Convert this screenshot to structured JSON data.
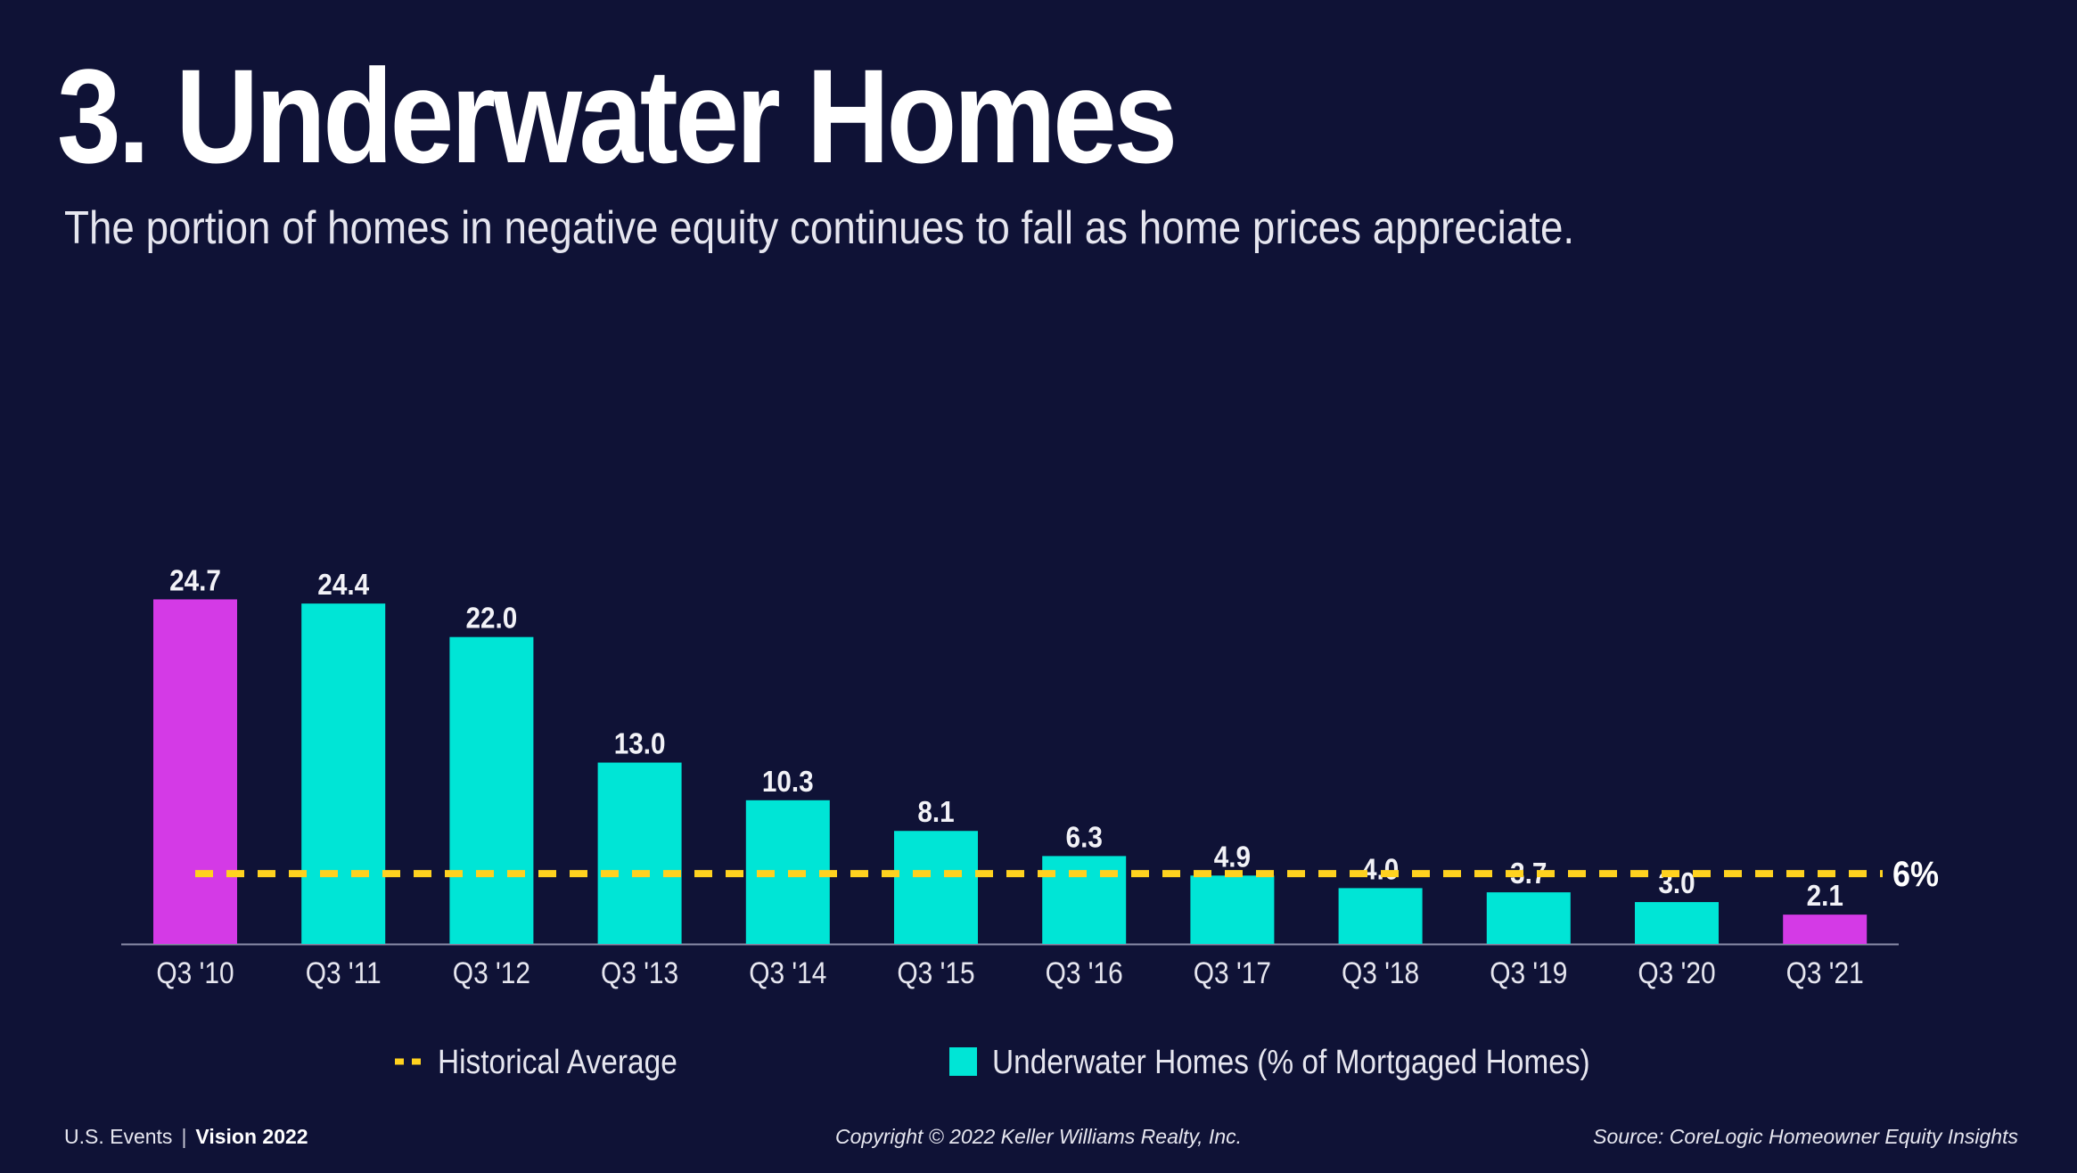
{
  "title": "3. Underwater Homes",
  "subtitle": "The portion of homes in negative equity continues to fall as home prices appreciate.",
  "footer": {
    "left_label": "U.S. Events",
    "separator": "|",
    "brand": "Vision 2022",
    "copyright": "Copyright © 2022 Keller Williams Realty, Inc.",
    "source": "Source: CoreLogic Homeowner Equity Insights"
  },
  "colors": {
    "background": "#0f1236",
    "bar": "#00e5d6",
    "highlight_bar": "#d43ae6",
    "average_line": "#ffd21f",
    "text": "#ffffff"
  },
  "chart_data": {
    "type": "bar",
    "title": "",
    "xlabel": "",
    "ylabel": "",
    "ylim": [
      0,
      25
    ],
    "grid": false,
    "legend_position": "bottom",
    "categories": [
      "Q3 '10",
      "Q3 '11",
      "Q3 '12",
      "Q3 '13",
      "Q3 '14",
      "Q3 '15",
      "Q3 '16",
      "Q3 '17",
      "Q3 '18",
      "Q3 '19",
      "Q3 '20",
      "Q3 '21"
    ],
    "series": [
      {
        "name": "Underwater Homes (% of Mortgaged Homes)",
        "values": [
          24.7,
          24.4,
          22.0,
          13.0,
          10.3,
          8.1,
          6.3,
          4.9,
          4.0,
          3.7,
          3.0,
          2.1
        ],
        "data_labels": [
          "24.7",
          "24.4",
          "22.0",
          "13.0",
          "10.3",
          "8.1",
          "6.3",
          "4.9",
          "4.0",
          "3.7",
          "3.0",
          "2.1"
        ],
        "highlighted": [
          "Q3 '10",
          "Q3 '21"
        ]
      }
    ],
    "reference_line": {
      "name": "Historical Average",
      "value": 6,
      "label": "6%",
      "style": "dashed"
    },
    "legend": [
      "Historical Average",
      "Underwater Homes (% of Mortgaged Homes)"
    ]
  }
}
